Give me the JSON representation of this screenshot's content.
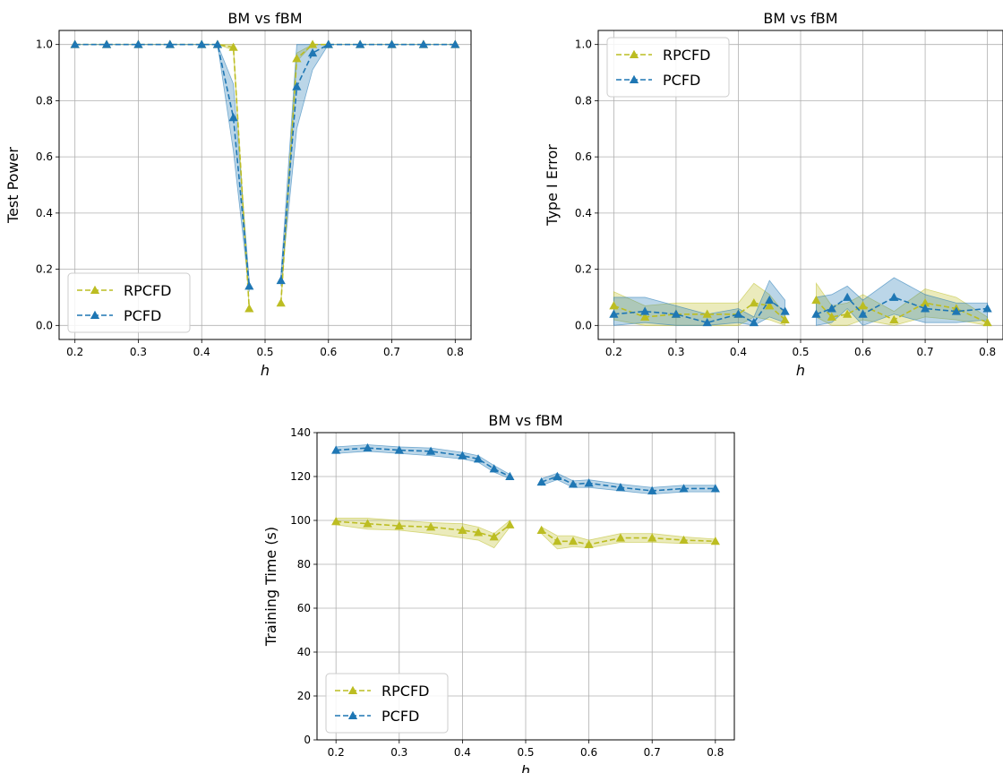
{
  "chart_data": [
    {
      "type": "line",
      "title": "BM vs fBM",
      "xlabel": "h",
      "ylabel": "Test Power",
      "xlim": [
        0.175,
        0.825
      ],
      "ylim": [
        -0.05,
        1.05
      ],
      "xticks": [
        "0.2",
        "0.3",
        "0.4",
        "0.5",
        "0.6",
        "0.7",
        "0.8"
      ],
      "yticks": [
        "0.0",
        "0.2",
        "0.4",
        "0.6",
        "0.8",
        "1.0"
      ],
      "grid": true,
      "legend": "lower-left",
      "series": [
        {
          "name": "RPCFD",
          "color": "#bcbd22",
          "segments": [
            {
              "x": [
                0.2,
                0.25,
                0.3,
                0.35,
                0.4,
                0.425,
                0.45,
                0.475
              ],
              "y": [
                1.0,
                1.0,
                1.0,
                1.0,
                1.0,
                1.0,
                0.99,
                0.06
              ],
              "lo": [
                1.0,
                1.0,
                1.0,
                1.0,
                1.0,
                1.0,
                0.98,
                0.05
              ],
              "hi": [
                1.0,
                1.0,
                1.0,
                1.0,
                1.0,
                1.0,
                1.0,
                0.07
              ]
            },
            {
              "x": [
                0.525,
                0.55,
                0.575,
                0.6,
                0.65,
                0.7,
                0.75,
                0.8
              ],
              "y": [
                0.08,
                0.95,
                1.0,
                1.0,
                1.0,
                1.0,
                1.0,
                1.0
              ],
              "lo": [
                0.07,
                0.94,
                1.0,
                1.0,
                1.0,
                1.0,
                1.0,
                1.0
              ],
              "hi": [
                0.09,
                0.97,
                1.0,
                1.0,
                1.0,
                1.0,
                1.0,
                1.0
              ]
            }
          ]
        },
        {
          "name": "PCFD",
          "color": "#1f77b4",
          "segments": [
            {
              "x": [
                0.2,
                0.25,
                0.3,
                0.35,
                0.4,
                0.425,
                0.45,
                0.475
              ],
              "y": [
                1.0,
                1.0,
                1.0,
                1.0,
                1.0,
                1.0,
                0.74,
                0.14
              ],
              "lo": [
                1.0,
                1.0,
                1.0,
                1.0,
                1.0,
                1.0,
                0.62,
                0.12
              ],
              "hi": [
                1.0,
                1.0,
                1.0,
                1.0,
                1.0,
                1.0,
                0.86,
                0.16
              ]
            },
            {
              "x": [
                0.525,
                0.55,
                0.575,
                0.6,
                0.65,
                0.7,
                0.75,
                0.8
              ],
              "y": [
                0.16,
                0.85,
                0.97,
                1.0,
                1.0,
                1.0,
                1.0,
                1.0
              ],
              "lo": [
                0.14,
                0.7,
                0.91,
                1.0,
                1.0,
                1.0,
                1.0,
                1.0
              ],
              "hi": [
                0.18,
                1.0,
                1.0,
                1.0,
                1.0,
                1.0,
                1.0,
                1.0
              ]
            }
          ]
        }
      ]
    },
    {
      "type": "line",
      "title": "BM vs fBM",
      "xlabel": "h",
      "ylabel": "Type I Error",
      "xlim": [
        0.175,
        0.825
      ],
      "ylim": [
        -0.05,
        1.05
      ],
      "xticks": [
        "0.2",
        "0.3",
        "0.4",
        "0.5",
        "0.6",
        "0.7",
        "0.8"
      ],
      "yticks": [
        "0.0",
        "0.2",
        "0.4",
        "0.6",
        "0.8",
        "1.0"
      ],
      "grid": true,
      "legend": "upper-left",
      "series": [
        {
          "name": "RPCFD",
          "color": "#bcbd22",
          "segments": [
            {
              "x": [
                0.2,
                0.25,
                0.3,
                0.35,
                0.4,
                0.425,
                0.45,
                0.475
              ],
              "y": [
                0.07,
                0.03,
                0.04,
                0.04,
                0.04,
                0.08,
                0.07,
                0.02
              ],
              "lo": [
                0.02,
                0.0,
                0.0,
                0.0,
                0.0,
                0.03,
                0.02,
                0.0
              ],
              "hi": [
                0.12,
                0.07,
                0.08,
                0.08,
                0.08,
                0.15,
                0.11,
                0.04
              ]
            },
            {
              "x": [
                0.525,
                0.55,
                0.575,
                0.6,
                0.65,
                0.7,
                0.75,
                0.8
              ],
              "y": [
                0.09,
                0.03,
                0.04,
                0.07,
                0.02,
                0.08,
                0.06,
                0.01
              ],
              "lo": [
                0.03,
                0.0,
                0.0,
                0.02,
                0.0,
                0.03,
                0.02,
                0.0
              ],
              "hi": [
                0.15,
                0.07,
                0.08,
                0.11,
                0.05,
                0.13,
                0.1,
                0.03
              ]
            }
          ]
        },
        {
          "name": "PCFD",
          "color": "#1f77b4",
          "segments": [
            {
              "x": [
                0.2,
                0.25,
                0.3,
                0.35,
                0.4,
                0.425,
                0.45,
                0.475
              ],
              "y": [
                0.04,
                0.05,
                0.04,
                0.01,
                0.04,
                0.01,
                0.09,
                0.05
              ],
              "lo": [
                0.0,
                0.01,
                0.0,
                0.0,
                0.01,
                0.0,
                0.03,
                0.01
              ],
              "hi": [
                0.1,
                0.1,
                0.07,
                0.04,
                0.06,
                0.03,
                0.16,
                0.09
              ]
            },
            {
              "x": [
                0.525,
                0.55,
                0.575,
                0.6,
                0.65,
                0.7,
                0.75,
                0.8
              ],
              "y": [
                0.04,
                0.06,
                0.1,
                0.04,
                0.1,
                0.06,
                0.05,
                0.06
              ],
              "lo": [
                0.0,
                0.01,
                0.06,
                0.0,
                0.04,
                0.01,
                0.01,
                0.02
              ],
              "hi": [
                0.1,
                0.11,
                0.14,
                0.09,
                0.17,
                0.11,
                0.08,
                0.08
              ]
            }
          ]
        }
      ]
    },
    {
      "type": "line",
      "title": "BM vs fBM",
      "xlabel": "h",
      "ylabel": "Training Time (s)",
      "xlim": [
        0.17,
        0.83
      ],
      "ylim": [
        0,
        140
      ],
      "xticks": [
        "0.2",
        "0.3",
        "0.4",
        "0.5",
        "0.6",
        "0.7",
        "0.8"
      ],
      "yticks": [
        "0",
        "20",
        "40",
        "60",
        "80",
        "100",
        "120",
        "140"
      ],
      "grid": true,
      "legend": "lower-left",
      "series": [
        {
          "name": "RPCFD",
          "color": "#bcbd22",
          "segments": [
            {
              "x": [
                0.2,
                0.25,
                0.3,
                0.35,
                0.4,
                0.425,
                0.45,
                0.475
              ],
              "y": [
                99.5,
                98.5,
                97.5,
                97,
                95.5,
                94.5,
                92.5,
                98
              ],
              "lo": [
                98,
                96,
                95.5,
                94,
                92,
                91,
                87.5,
                97
              ],
              "hi": [
                101,
                101,
                100,
                99,
                98.5,
                97,
                94,
                100
              ]
            },
            {
              "x": [
                0.525,
                0.55,
                0.575,
                0.6,
                0.65,
                0.7,
                0.75,
                0.8
              ],
              "y": [
                95.5,
                90.5,
                90.5,
                89,
                92,
                92,
                91,
                90.5
              ],
              "lo": [
                94,
                87,
                88,
                87.5,
                90,
                90,
                89.5,
                89.5
              ],
              "hi": [
                97,
                93,
                93,
                91,
                94,
                94,
                92.5,
                91.5
              ]
            }
          ]
        },
        {
          "name": "PCFD",
          "color": "#1f77b4",
          "segments": [
            {
              "x": [
                0.2,
                0.25,
                0.3,
                0.35,
                0.4,
                0.425,
                0.45,
                0.475
              ],
              "y": [
                132,
                133,
                132,
                131.5,
                129.5,
                128,
                123.5,
                120
              ],
              "lo": [
                130.5,
                131.5,
                130.5,
                129.5,
                128,
                126.5,
                122,
                119
              ],
              "hi": [
                133.5,
                134.5,
                133.5,
                133,
                131,
                129.5,
                125,
                121
              ]
            },
            {
              "x": [
                0.525,
                0.55,
                0.575,
                0.6,
                0.65,
                0.7,
                0.75,
                0.8
              ],
              "y": [
                117.5,
                120,
                116.5,
                117,
                115,
                113.5,
                114.5,
                114.5
              ],
              "lo": [
                116,
                118.5,
                115,
                115,
                113.5,
                112,
                113,
                113
              ],
              "hi": [
                119,
                121.5,
                118,
                118.5,
                116.5,
                115,
                116,
                116
              ]
            }
          ]
        }
      ]
    }
  ]
}
